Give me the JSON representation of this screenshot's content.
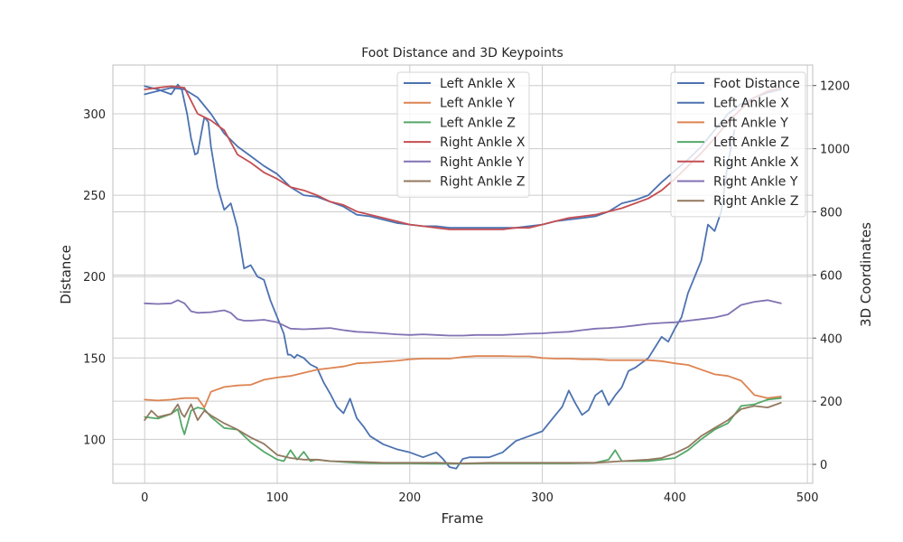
{
  "chart_data": {
    "type": "line",
    "title": "Foot Distance and 3D Keypoints",
    "xlabel": "Frame",
    "ylabel": "Distance",
    "y2label": "3D Coordinates",
    "xlim": [
      -24,
      504
    ],
    "ylim": [
      73,
      330
    ],
    "y2lim": [
      -60,
      1265
    ],
    "xticks": [
      0,
      100,
      200,
      300,
      400,
      500
    ],
    "yticks": [
      100,
      150,
      200,
      250,
      300
    ],
    "y2ticks": [
      0,
      200,
      400,
      600,
      800,
      1000,
      1200
    ],
    "grid": true,
    "legends": [
      {
        "placement": "top-center",
        "entries": [
          "Left Ankle X",
          "Left Ankle Y",
          "Left Ankle Z",
          "Right Ankle X",
          "Right Ankle Y",
          "Right Ankle Z"
        ]
      },
      {
        "placement": "top-right",
        "entries": [
          "Foot Distance",
          "Left Ankle X",
          "Left Ankle Y",
          "Left Ankle Z",
          "Right Ankle X",
          "Right Ankle Y",
          "Right Ankle Z"
        ]
      }
    ],
    "colors": {
      "foot_distance": "#4c72b0",
      "left_ankle_x": "#4c72b0",
      "left_ankle_y": "#dd8452",
      "left_ankle_z": "#55a868",
      "right_ankle_x": "#c44e52",
      "right_ankle_y": "#8172b3",
      "right_ankle_z": "#937860"
    },
    "series": [
      {
        "name": "Foot Distance",
        "axis": "left",
        "color": "#4c72b0",
        "x": [
          0,
          10,
          20,
          25,
          28,
          32,
          35,
          38,
          40,
          42,
          45,
          48,
          50,
          55,
          60,
          65,
          70,
          75,
          80,
          85,
          90,
          95,
          100,
          105,
          108,
          110,
          113,
          115,
          120,
          125,
          130,
          135,
          140,
          145,
          150,
          155,
          160,
          165,
          170,
          180,
          190,
          200,
          210,
          220,
          225,
          230,
          235,
          240,
          245,
          250,
          260,
          270,
          280,
          290,
          300,
          305,
          310,
          315,
          320,
          325,
          330,
          335,
          340,
          345,
          350,
          355,
          360,
          365,
          370,
          380,
          390,
          395,
          400,
          405,
          410,
          415,
          420,
          425,
          430,
          435,
          440,
          445
        ],
        "values": [
          317,
          315,
          312,
          318,
          315,
          300,
          285,
          275,
          276,
          285,
          298,
          295,
          280,
          255,
          241,
          245,
          230,
          205,
          207,
          200,
          198,
          185,
          175,
          165,
          152,
          152,
          150,
          152,
          150,
          146,
          144,
          135,
          128,
          120,
          116,
          125,
          113,
          108,
          102,
          97,
          94,
          92,
          89,
          92,
          88,
          83,
          82,
          88,
          89,
          89,
          89,
          92,
          99,
          102,
          105,
          110,
          115,
          120,
          130,
          122,
          115,
          118,
          127,
          130,
          121,
          127,
          132,
          142,
          144,
          150,
          163,
          160,
          168,
          175,
          190,
          200,
          210,
          232,
          228,
          240,
          270,
          290
        ]
      },
      {
        "name": "Left Ankle X",
        "axis": "left",
        "color": "#4c72b0",
        "x": [
          0,
          10,
          20,
          30,
          40,
          50,
          60,
          70,
          80,
          90,
          100,
          110,
          120,
          130,
          140,
          150,
          160,
          170,
          180,
          190,
          200,
          210,
          220,
          230,
          240,
          250,
          260,
          270,
          280,
          290,
          300,
          310,
          320,
          330,
          340,
          350,
          360,
          370,
          380,
          390,
          400,
          410,
          420,
          430,
          440,
          450,
          460,
          470,
          480
        ],
        "values": [
          312,
          314,
          316,
          315,
          310,
          300,
          288,
          280,
          274,
          268,
          263,
          255,
          250,
          249,
          246,
          243,
          238,
          237,
          235,
          233,
          232,
          231,
          231,
          230,
          230,
          230,
          230,
          230,
          230,
          231,
          232,
          234,
          235,
          236,
          237,
          240,
          245,
          247,
          250,
          258,
          265,
          272,
          280,
          290,
          300,
          306,
          310,
          313,
          315
        ]
      },
      {
        "name": "Left Ankle Y",
        "axis": "right",
        "color": "#dd8452",
        "x": [
          0,
          10,
          20,
          30,
          40,
          45,
          50,
          60,
          70,
          80,
          90,
          100,
          110,
          120,
          130,
          140,
          150,
          160,
          170,
          180,
          190,
          200,
          210,
          220,
          230,
          240,
          250,
          260,
          270,
          280,
          290,
          300,
          310,
          320,
          330,
          340,
          350,
          360,
          370,
          380,
          390,
          400,
          410,
          420,
          430,
          440,
          450,
          460,
          470,
          480
        ],
        "values": [
          205,
          202,
          205,
          210,
          210,
          180,
          230,
          245,
          250,
          252,
          268,
          275,
          280,
          290,
          300,
          305,
          310,
          320,
          322,
          325,
          328,
          333,
          335,
          335,
          335,
          340,
          343,
          343,
          343,
          342,
          342,
          337,
          335,
          335,
          333,
          333,
          330,
          330,
          330,
          330,
          327,
          320,
          315,
          300,
          285,
          280,
          265,
          220,
          210,
          215
        ]
      },
      {
        "name": "Left Ankle Z",
        "axis": "right",
        "color": "#55a868",
        "x": [
          0,
          10,
          20,
          25,
          28,
          30,
          35,
          40,
          45,
          50,
          60,
          70,
          80,
          90,
          100,
          105,
          110,
          115,
          120,
          125,
          130,
          140,
          160,
          180,
          200,
          220,
          240,
          260,
          280,
          300,
          320,
          340,
          350,
          355,
          360,
          380,
          390,
          400,
          410,
          420,
          430,
          440,
          450,
          460,
          470,
          480
        ],
        "values": [
          150,
          145,
          160,
          175,
          120,
          95,
          170,
          180,
          175,
          150,
          115,
          110,
          70,
          40,
          15,
          10,
          45,
          15,
          40,
          10,
          15,
          10,
          5,
          3,
          3,
          2,
          2,
          3,
          3,
          3,
          3,
          5,
          15,
          45,
          10,
          10,
          15,
          20,
          45,
          80,
          110,
          130,
          185,
          190,
          205,
          210
        ]
      },
      {
        "name": "Right Ankle X",
        "axis": "left",
        "color": "#c44e52",
        "x": [
          0,
          10,
          20,
          30,
          40,
          50,
          60,
          70,
          80,
          90,
          100,
          110,
          120,
          130,
          140,
          150,
          160,
          170,
          180,
          190,
          200,
          210,
          220,
          230,
          240,
          250,
          260,
          270,
          280,
          290,
          300,
          310,
          320,
          330,
          340,
          350,
          360,
          370,
          380,
          390,
          400,
          410,
          420,
          430,
          440,
          450,
          460,
          470,
          480
        ],
        "values": [
          315,
          316,
          317,
          316,
          300,
          296,
          290,
          275,
          270,
          264,
          260,
          255,
          253,
          250,
          246,
          244,
          240,
          238,
          236,
          234,
          232,
          231,
          230,
          229,
          229,
          229,
          229,
          229,
          230,
          230,
          232,
          234,
          236,
          237,
          238,
          240,
          242,
          245,
          248,
          253,
          260,
          268,
          276,
          285,
          295,
          303,
          310,
          314,
          316
        ]
      },
      {
        "name": "Right Ankle Y",
        "axis": "right",
        "color": "#8172b3",
        "x": [
          0,
          10,
          20,
          25,
          30,
          35,
          40,
          50,
          60,
          65,
          70,
          75,
          80,
          90,
          100,
          110,
          120,
          130,
          140,
          150,
          160,
          170,
          180,
          190,
          200,
          210,
          220,
          230,
          240,
          250,
          260,
          270,
          280,
          290,
          300,
          310,
          320,
          330,
          340,
          350,
          360,
          370,
          380,
          390,
          400,
          410,
          420,
          430,
          440,
          450,
          460,
          470,
          480
        ],
        "values": [
          510,
          508,
          510,
          520,
          510,
          485,
          480,
          482,
          488,
          480,
          460,
          455,
          455,
          458,
          450,
          430,
          428,
          430,
          432,
          425,
          420,
          418,
          415,
          412,
          410,
          412,
          410,
          408,
          408,
          410,
          410,
          410,
          412,
          414,
          415,
          418,
          420,
          425,
          430,
          432,
          435,
          440,
          445,
          448,
          450,
          455,
          460,
          465,
          475,
          505,
          515,
          520,
          510
        ]
      },
      {
        "name": "Right Ankle Z",
        "axis": "right",
        "color": "#937860",
        "x": [
          0,
          5,
          10,
          20,
          25,
          28,
          30,
          35,
          40,
          45,
          50,
          60,
          70,
          80,
          90,
          100,
          110,
          120,
          130,
          140,
          160,
          180,
          200,
          220,
          240,
          260,
          280,
          300,
          320,
          340,
          360,
          380,
          390,
          400,
          410,
          420,
          430,
          440,
          450,
          460,
          470,
          480
        ],
        "values": [
          140,
          170,
          150,
          160,
          190,
          160,
          150,
          190,
          140,
          170,
          155,
          130,
          110,
          85,
          65,
          30,
          20,
          15,
          15,
          10,
          8,
          5,
          5,
          5,
          3,
          5,
          5,
          5,
          5,
          5,
          10,
          15,
          20,
          35,
          55,
          90,
          115,
          140,
          175,
          185,
          180,
          195
        ]
      }
    ]
  }
}
